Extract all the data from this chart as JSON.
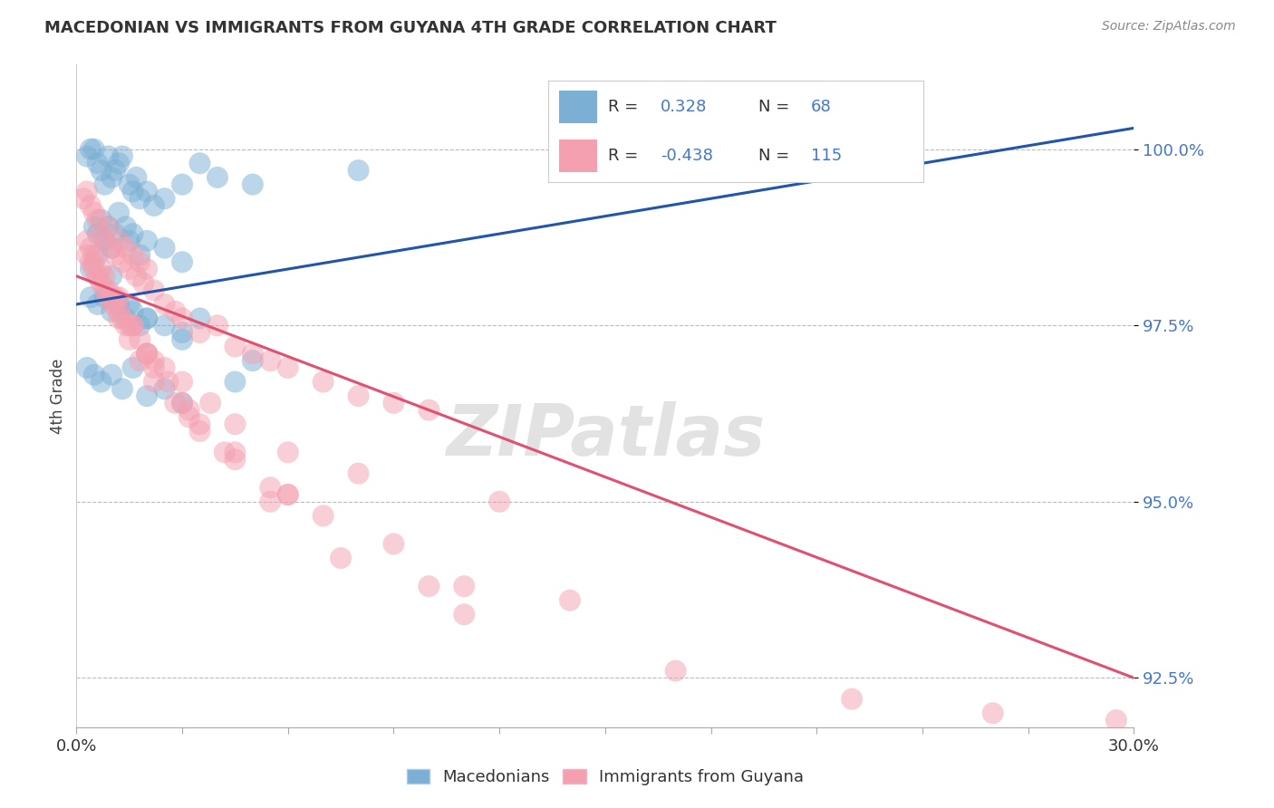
{
  "title": "MACEDONIAN VS IMMIGRANTS FROM GUYANA 4TH GRADE CORRELATION CHART",
  "source": "Source: ZipAtlas.com",
  "ylabel": "4th Grade",
  "y_ticks": [
    92.5,
    95.0,
    97.5,
    100.0
  ],
  "y_tick_labels": [
    "92.5%",
    "95.0%",
    "97.5%",
    "100.0%"
  ],
  "xlim": [
    0.0,
    30.0
  ],
  "ylim": [
    91.8,
    101.2
  ],
  "blue_color": "#7BAFD4",
  "pink_color": "#F4A0B0",
  "line_blue": "#2255AA",
  "line_pink": "#E05070",
  "watermark": "ZIPatlas",
  "mac_line": {
    "x0": 0,
    "y0": 97.8,
    "x1": 30,
    "y1": 100.3
  },
  "guy_line": {
    "x0": 0,
    "y0": 98.2,
    "x1": 30,
    "y1": 92.5
  },
  "mac_points_x": [
    0.3,
    0.4,
    0.5,
    0.6,
    0.7,
    0.8,
    0.9,
    1.0,
    1.1,
    1.2,
    1.3,
    1.5,
    1.6,
    1.7,
    1.8,
    2.0,
    2.2,
    2.5,
    3.0,
    3.5,
    4.0,
    5.0,
    0.5,
    0.6,
    0.7,
    0.8,
    0.9,
    1.0,
    1.1,
    1.2,
    1.4,
    1.5,
    1.6,
    1.8,
    2.0,
    2.5,
    3.0,
    0.4,
    0.6,
    0.8,
    1.0,
    1.2,
    1.4,
    1.6,
    1.8,
    2.0,
    2.5,
    3.0,
    3.5,
    0.3,
    0.5,
    0.7,
    1.0,
    1.3,
    1.6,
    2.0,
    2.5,
    3.0,
    4.5,
    0.4,
    0.6,
    1.0,
    1.5,
    2.0,
    3.0,
    5.0,
    8.0
  ],
  "mac_points_y": [
    99.9,
    100.0,
    100.0,
    99.8,
    99.7,
    99.5,
    99.9,
    99.6,
    99.7,
    99.8,
    99.9,
    99.5,
    99.4,
    99.6,
    99.3,
    99.4,
    99.2,
    99.3,
    99.5,
    99.8,
    99.6,
    99.5,
    98.9,
    98.8,
    99.0,
    98.7,
    98.9,
    98.6,
    98.8,
    99.1,
    98.9,
    98.7,
    98.8,
    98.5,
    98.7,
    98.6,
    98.4,
    97.9,
    97.8,
    97.9,
    97.7,
    97.8,
    97.6,
    97.7,
    97.5,
    97.6,
    97.5,
    97.4,
    97.6,
    96.9,
    96.8,
    96.7,
    96.8,
    96.6,
    96.9,
    96.5,
    96.6,
    96.4,
    96.7,
    98.3,
    98.5,
    98.2,
    97.8,
    97.6,
    97.3,
    97.0,
    99.7
  ],
  "guy_points_x": [
    0.2,
    0.3,
    0.4,
    0.5,
    0.6,
    0.7,
    0.8,
    0.9,
    1.0,
    1.1,
    1.2,
    1.3,
    1.4,
    1.5,
    1.6,
    1.7,
    1.8,
    1.9,
    2.0,
    2.2,
    2.5,
    2.8,
    3.0,
    3.5,
    4.0,
    4.5,
    5.0,
    5.5,
    6.0,
    7.0,
    8.0,
    9.0,
    10.0,
    0.3,
    0.5,
    0.7,
    0.9,
    1.1,
    1.3,
    1.5,
    1.8,
    2.0,
    2.5,
    3.0,
    3.8,
    4.5,
    6.0,
    8.0,
    12.0,
    0.4,
    0.6,
    0.8,
    1.0,
    1.2,
    1.5,
    1.8,
    2.2,
    2.8,
    3.5,
    4.5,
    6.0,
    9.0,
    0.3,
    0.5,
    0.8,
    1.2,
    1.6,
    2.0,
    2.6,
    3.2,
    4.2,
    5.5,
    7.5,
    11.0,
    17.0,
    0.4,
    0.7,
    1.1,
    1.6,
    2.2,
    3.0,
    4.5,
    7.0,
    14.0,
    26.0,
    29.5,
    0.5,
    0.9,
    1.4,
    2.2,
    3.5,
    6.0,
    11.0,
    0.6,
    1.2,
    2.0,
    3.2,
    5.5,
    10.0,
    22.0
  ],
  "guy_points_y": [
    99.3,
    99.4,
    99.2,
    99.1,
    99.0,
    98.8,
    98.7,
    98.9,
    98.6,
    98.5,
    98.7,
    98.4,
    98.6,
    98.3,
    98.5,
    98.2,
    98.4,
    98.1,
    98.3,
    98.0,
    97.8,
    97.7,
    97.6,
    97.4,
    97.5,
    97.2,
    97.1,
    97.0,
    96.9,
    96.7,
    96.5,
    96.4,
    96.3,
    98.5,
    98.3,
    98.1,
    97.9,
    97.8,
    97.6,
    97.5,
    97.3,
    97.1,
    96.9,
    96.7,
    96.4,
    96.1,
    95.7,
    95.4,
    95.0,
    98.4,
    98.2,
    98.0,
    97.8,
    97.6,
    97.3,
    97.0,
    96.7,
    96.4,
    96.0,
    95.6,
    95.1,
    94.4,
    98.7,
    98.5,
    98.2,
    97.9,
    97.5,
    97.1,
    96.7,
    96.2,
    95.7,
    95.0,
    94.2,
    93.4,
    92.6,
    98.6,
    98.3,
    97.9,
    97.5,
    97.0,
    96.4,
    95.7,
    94.8,
    93.6,
    92.0,
    91.9,
    98.4,
    98.0,
    97.5,
    96.9,
    96.1,
    95.1,
    93.8,
    98.2,
    97.7,
    97.1,
    96.3,
    95.2,
    93.8,
    92.2
  ]
}
